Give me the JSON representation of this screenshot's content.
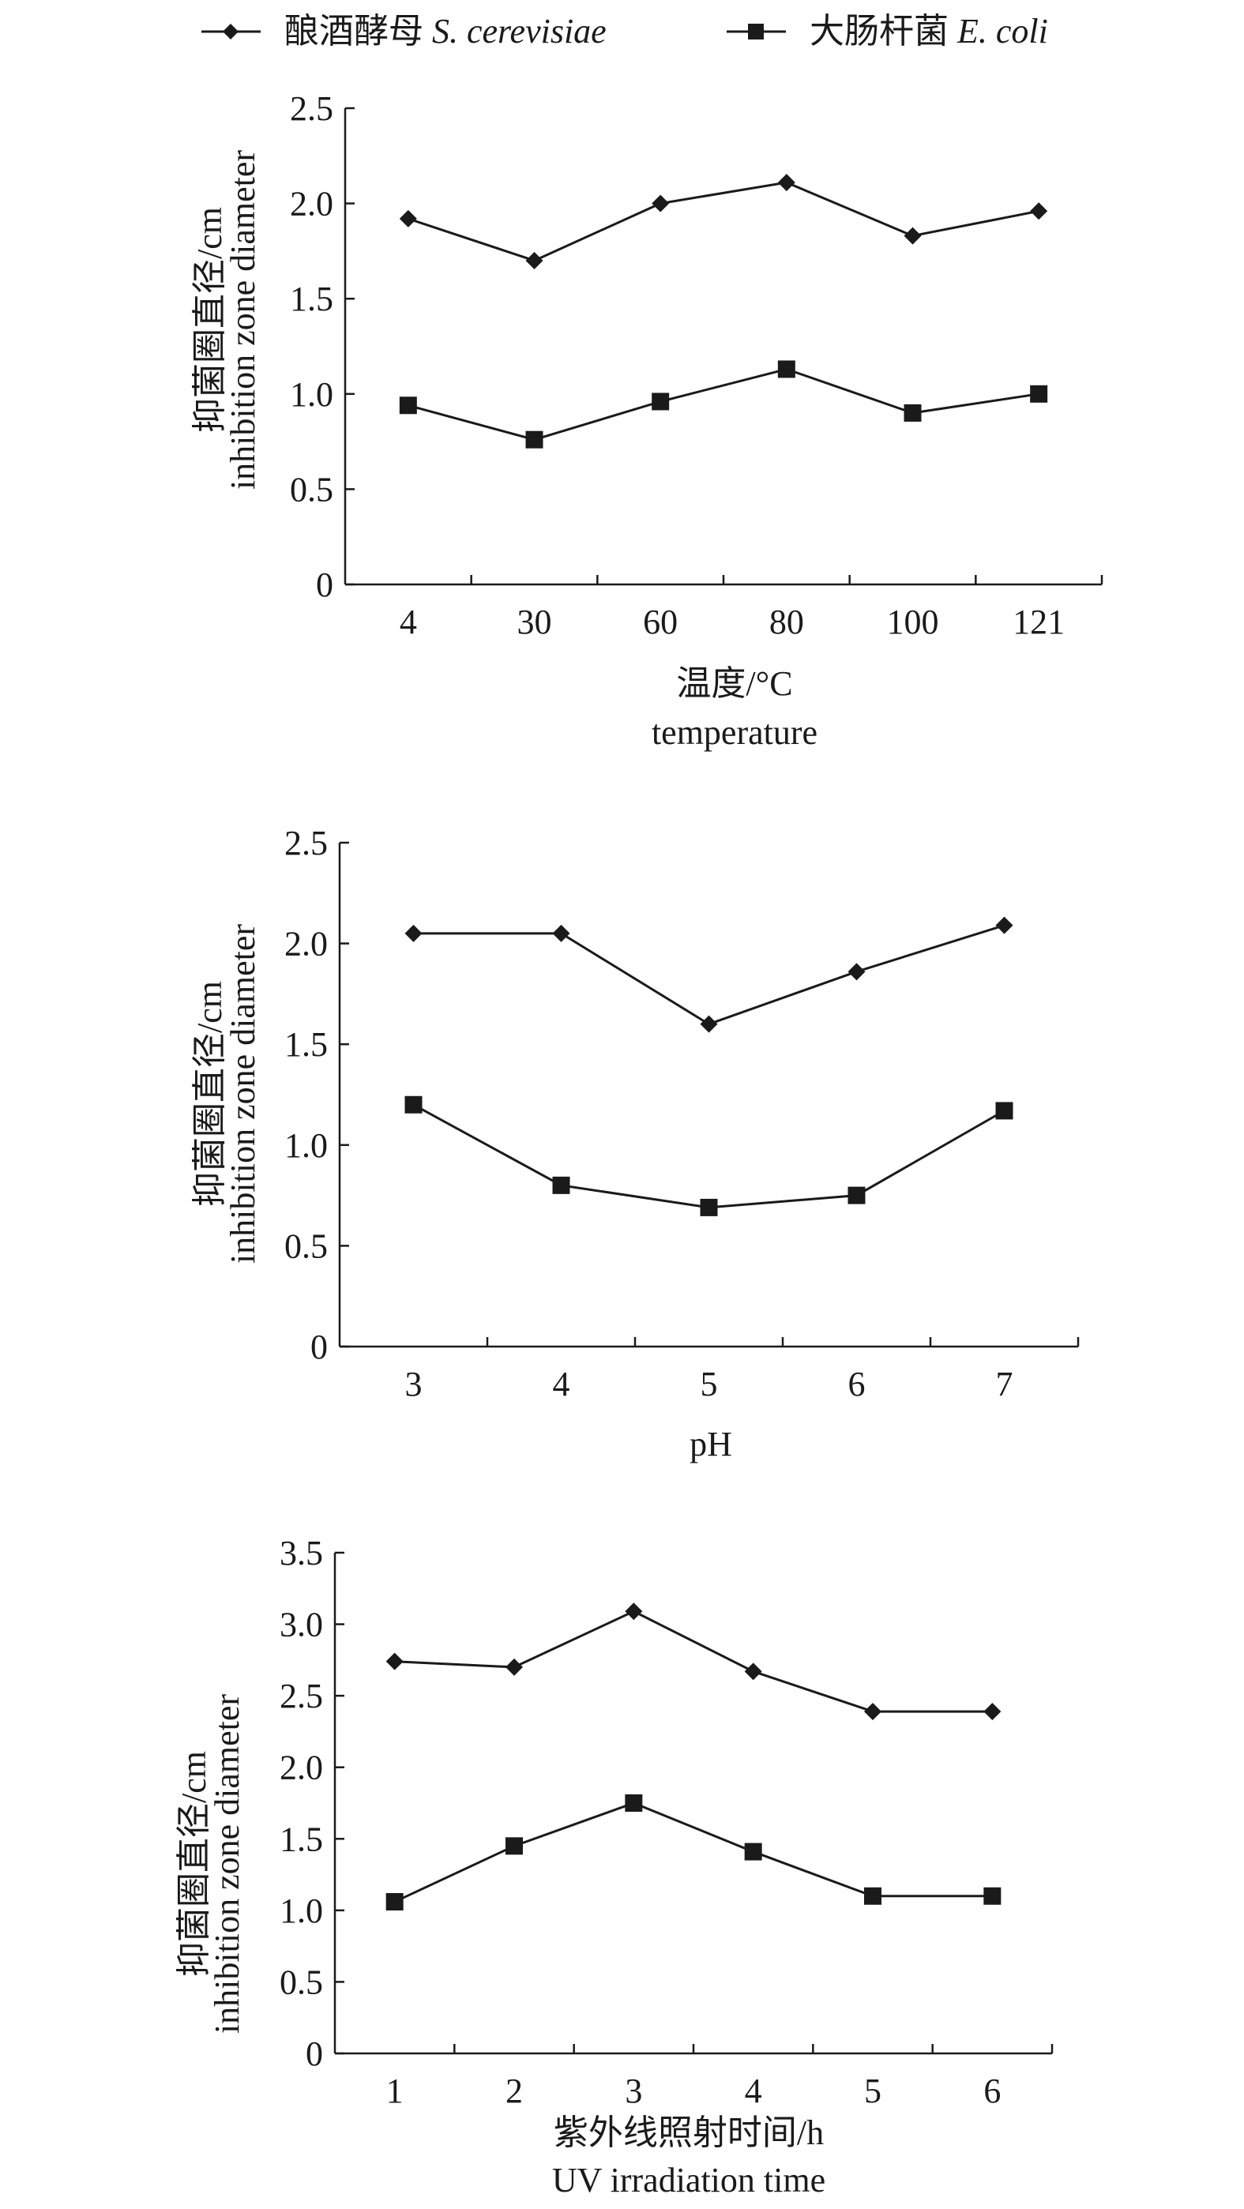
{
  "legend": {
    "items": [
      {
        "name": "酿酒酵母",
        "latin": "S. cerevisiae",
        "marker": "diamond"
      },
      {
        "name": "大肠杆菌",
        "latin": "E. coli",
        "marker": "square"
      }
    ]
  },
  "colors": {
    "ink": "#1a1a1a"
  },
  "chart_data": [
    {
      "type": "line",
      "ylabel_cn": "抑菌圈直径/cm",
      "ylabel_en": "inhibition zone diameter",
      "xlabel_cn": "温度/°C",
      "xlabel_en": "temperature",
      "categories": [
        "4",
        "30",
        "60",
        "80",
        "100",
        "121"
      ],
      "yticks": [
        "0",
        "0.5",
        "1.0",
        "1.5",
        "2.0",
        "2.5"
      ],
      "ylim": [
        0,
        2.5
      ],
      "series": [
        {
          "name": "S. cerevisiae",
          "marker": "diamond",
          "values": [
            1.92,
            1.7,
            2.0,
            2.11,
            1.83,
            1.96
          ]
        },
        {
          "name": "E. coli",
          "marker": "square",
          "values": [
            0.94,
            0.76,
            0.96,
            1.13,
            0.9,
            1.0
          ]
        }
      ]
    },
    {
      "type": "line",
      "ylabel_cn": "抑菌圈直径/cm",
      "ylabel_en": "inhibition zone diameter",
      "xlabel_cn": "pH",
      "xlabel_en": "",
      "categories": [
        "3",
        "4",
        "5",
        "6",
        "7"
      ],
      "yticks": [
        "0",
        "0.5",
        "1.0",
        "1.5",
        "2.0",
        "2.5"
      ],
      "ylim": [
        0,
        2.5
      ],
      "series": [
        {
          "name": "S. cerevisiae",
          "marker": "diamond",
          "values": [
            2.05,
            2.05,
            1.6,
            1.86,
            2.09
          ]
        },
        {
          "name": "E. coli",
          "marker": "square",
          "values": [
            1.2,
            0.8,
            0.69,
            0.75,
            1.17
          ]
        }
      ]
    },
    {
      "type": "line",
      "ylabel_cn": "抑菌圈直径/cm",
      "ylabel_en": "inhibition zone diameter",
      "xlabel_cn": "紫外线照射时间/h",
      "xlabel_en": "UV irradiation time",
      "categories": [
        "1",
        "2",
        "3",
        "4",
        "5",
        "6"
      ],
      "yticks": [
        "0",
        "0.5",
        "1.0",
        "1.5",
        "2.0",
        "2.5",
        "3.0",
        "3.5"
      ],
      "ylim": [
        0,
        3.5
      ],
      "series": [
        {
          "name": "S. cerevisiae",
          "marker": "diamond",
          "values": [
            2.74,
            2.7,
            3.09,
            2.67,
            2.39,
            2.39
          ]
        },
        {
          "name": "E. coli",
          "marker": "square",
          "values": [
            1.06,
            1.45,
            1.75,
            1.41,
            1.1,
            1.1
          ]
        }
      ]
    }
  ]
}
